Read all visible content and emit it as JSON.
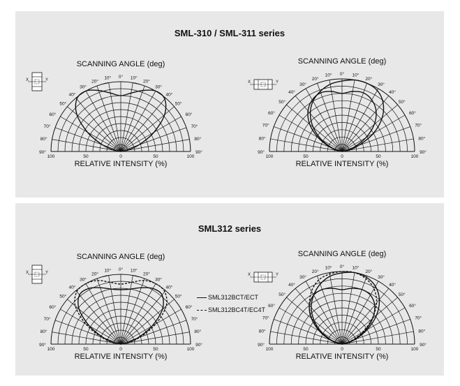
{
  "sections": [
    {
      "title": "SML-310 / SML-311 series"
    },
    {
      "title": "SML312 series"
    }
  ],
  "chart_data": [
    {
      "type": "polar",
      "section": "SML-310 / SML-311 series",
      "xlabel_top": "SCANNING ANGLE (deg)",
      "xlabel_bottom": "RELATIVE INTENSITY  (%)",
      "angle_ticks": [
        "0°",
        "10°",
        "20°",
        "30°",
        "40°",
        "50°",
        "60°",
        "70°",
        "80°",
        "90°"
      ],
      "radial_ticks": [
        "100",
        "50",
        "0",
        "50",
        "100"
      ],
      "orientation_icon": {
        "left": "X",
        "right": "Y"
      },
      "series": [
        {
          "name": "",
          "style": "solid",
          "angles": [
            -90,
            -80,
            -70,
            -60,
            -50,
            -40,
            -30,
            -20,
            -10,
            0,
            10,
            20,
            30,
            40,
            50,
            60,
            70,
            80,
            90
          ],
          "values": [
            0,
            8,
            28,
            55,
            82,
            98,
            100,
            93,
            85,
            80,
            85,
            93,
            100,
            98,
            82,
            55,
            28,
            8,
            0
          ]
        }
      ]
    },
    {
      "type": "polar",
      "section": "SML-310 / SML-311 series",
      "xlabel_top": "SCANNING ANGLE (deg)",
      "xlabel_bottom": "RELATIVE INTENSITY  (%)",
      "angle_ticks": [
        "0°",
        "10°",
        "20°",
        "30°",
        "40°",
        "50°",
        "60°",
        "70°",
        "80°",
        "90°"
      ],
      "radial_ticks": [
        "100",
        "50",
        "0",
        "50",
        "100"
      ],
      "orientation_icon": {
        "left": "X",
        "right": "Y"
      },
      "series": [
        {
          "name": "",
          "style": "solid",
          "angles": [
            -90,
            -80,
            -70,
            -60,
            -50,
            -40,
            -30,
            -20,
            -10,
            0,
            10,
            20,
            30,
            40,
            50,
            60,
            70,
            80,
            90
          ],
          "values": [
            0,
            5,
            15,
            33,
            52,
            68,
            80,
            88,
            94,
            97,
            100,
            100,
            97,
            88,
            72,
            50,
            25,
            8,
            0
          ]
        },
        {
          "name": "",
          "style": "solid",
          "angles": [
            -90,
            -80,
            -70,
            -60,
            -50,
            -40,
            -30,
            -20,
            -10,
            0,
            10,
            20,
            30,
            40,
            50,
            60,
            70,
            80,
            90
          ],
          "values": [
            0,
            6,
            18,
            38,
            58,
            73,
            82,
            86,
            84,
            80,
            84,
            86,
            82,
            73,
            58,
            38,
            18,
            6,
            0
          ]
        }
      ]
    },
    {
      "type": "polar",
      "section": "SML312 series",
      "xlabel_top": "SCANNING ANGLE (deg)",
      "xlabel_bottom": "RELATIVE INTENSITY  (%)",
      "angle_ticks": [
        "0°",
        "10°",
        "20°",
        "30°",
        "40°",
        "50°",
        "60°",
        "70°",
        "80°",
        "90°"
      ],
      "radial_ticks": [
        "100",
        "50",
        "0",
        "50",
        "100"
      ],
      "orientation_icon": {
        "left": "X",
        "right": "Y"
      },
      "series": [
        {
          "name": "SML312BCT/ECT",
          "style": "solid",
          "angles": [
            -90,
            -80,
            -70,
            -60,
            -50,
            -40,
            -30,
            -20,
            -10,
            0,
            10,
            20,
            30,
            40,
            50,
            60,
            70,
            80,
            90
          ],
          "values": [
            0,
            8,
            26,
            52,
            78,
            92,
            92,
            86,
            80,
            78,
            80,
            86,
            92,
            92,
            78,
            52,
            26,
            8,
            0
          ]
        },
        {
          "name": "SML312BC4T/EC4T",
          "style": "dashed",
          "angles": [
            -90,
            -80,
            -70,
            -60,
            -50,
            -40,
            -30,
            -20,
            -10,
            0,
            10,
            20,
            30,
            40,
            50,
            60,
            70,
            80,
            90
          ],
          "values": [
            0,
            10,
            30,
            58,
            85,
            98,
            100,
            97,
            90,
            86,
            90,
            97,
            100,
            98,
            85,
            58,
            30,
            10,
            0
          ]
        }
      ]
    },
    {
      "type": "polar",
      "section": "SML312 series",
      "xlabel_top": "SCANNING ANGLE (deg)",
      "xlabel_bottom": "RELATIVE INTENSITY  (%)",
      "angle_ticks": [
        "0°",
        "10°",
        "20°",
        "30°",
        "40°",
        "50°",
        "60°",
        "70°",
        "80°",
        "90°"
      ],
      "radial_ticks": [
        "100",
        "50",
        "0",
        "50",
        "100"
      ],
      "orientation_icon": {
        "left": "X",
        "right": "Y"
      },
      "series": [
        {
          "name": "",
          "style": "solid",
          "angles": [
            -90,
            -80,
            -70,
            -60,
            -50,
            -40,
            -30,
            -20,
            -10,
            0,
            10,
            20,
            30,
            40,
            50,
            60,
            70,
            80,
            90
          ],
          "values": [
            0,
            5,
            15,
            32,
            50,
            66,
            78,
            88,
            95,
            98,
            100,
            98,
            92,
            80,
            62,
            40,
            20,
            6,
            0
          ]
        },
        {
          "name": "",
          "style": "solid",
          "angles": [
            -90,
            -80,
            -70,
            -60,
            -50,
            -40,
            -30,
            -20,
            -10,
            0,
            10,
            20,
            30,
            40,
            50,
            60,
            70,
            80,
            90
          ],
          "values": [
            0,
            6,
            18,
            36,
            55,
            70,
            78,
            80,
            78,
            75,
            78,
            80,
            78,
            70,
            55,
            36,
            18,
            6,
            0
          ]
        },
        {
          "name": "",
          "style": "dashed",
          "angles": [
            -90,
            -80,
            -70,
            -60,
            -50,
            -40,
            -30,
            -20,
            -10,
            0,
            10,
            20,
            30,
            40,
            50,
            60,
            70,
            80,
            90
          ],
          "values": [
            0,
            5,
            16,
            34,
            54,
            70,
            84,
            94,
            98,
            100,
            100,
            96,
            88,
            74,
            54,
            32,
            14,
            4,
            0
          ]
        }
      ]
    }
  ]
}
